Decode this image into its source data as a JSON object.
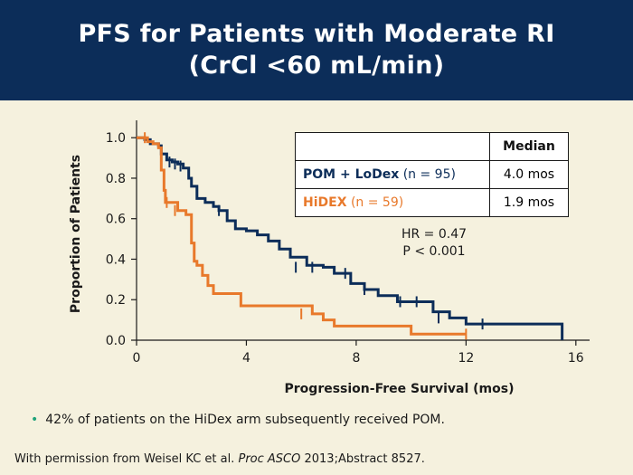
{
  "title": {
    "line1": "PFS for Patients with Moderate RI",
    "line2": "(CrCl <60 mL/min)"
  },
  "chart_data": {
    "type": "line",
    "xlabel": "Progression-Free Survival (mos)",
    "ylabel": "Proportion of Patients",
    "xlim": [
      0,
      16.5
    ],
    "ylim": [
      0,
      1.05
    ],
    "xticks": [
      "0",
      "4",
      "8",
      "12",
      "16"
    ],
    "yticks": [
      "0.0",
      "0.2",
      "0.4",
      "0.6",
      "0.8",
      "1.0"
    ],
    "grid": false,
    "series": [
      {
        "name": "POM + LoDex (n = 95)",
        "color": "#0c2d59",
        "x": [
          0,
          0.3,
          0.5,
          0.8,
          0.9,
          1.1,
          1.3,
          1.5,
          1.7,
          1.9,
          2.0,
          2.2,
          2.5,
          2.8,
          3.0,
          3.3,
          3.6,
          4.0,
          4.4,
          4.8,
          5.2,
          5.6,
          6.2,
          6.8,
          7.2,
          7.8,
          8.3,
          8.8,
          9.5,
          10.2,
          10.8,
          11.4,
          12.0,
          15.5,
          15.5
        ],
        "y": [
          1.0,
          0.99,
          0.97,
          0.96,
          0.92,
          0.89,
          0.88,
          0.87,
          0.85,
          0.8,
          0.76,
          0.7,
          0.68,
          0.66,
          0.64,
          0.59,
          0.55,
          0.54,
          0.52,
          0.49,
          0.45,
          0.41,
          0.37,
          0.36,
          0.33,
          0.28,
          0.25,
          0.22,
          0.19,
          0.19,
          0.14,
          0.11,
          0.08,
          0.08,
          0.0
        ],
        "censor_x": [
          1.2,
          1.4,
          1.6,
          3.0,
          5.8,
          6.4,
          7.6,
          8.3,
          9.6,
          10.2,
          11.0,
          12.6
        ],
        "censor_y": [
          0.88,
          0.87,
          0.86,
          0.64,
          0.36,
          0.36,
          0.33,
          0.25,
          0.19,
          0.19,
          0.11,
          0.08
        ]
      },
      {
        "name": "HiDEX (n = 59)",
        "color": "#e8792b",
        "x": [
          0,
          0.2,
          0.4,
          0.6,
          0.8,
          0.9,
          1.0,
          1.05,
          1.5,
          1.8,
          2.0,
          2.1,
          2.2,
          2.4,
          2.6,
          2.8,
          3.6,
          3.8,
          6.2,
          6.4,
          6.8,
          7.2,
          10.0,
          12.0
        ],
        "y": [
          1.0,
          1.0,
          0.98,
          0.97,
          0.95,
          0.84,
          0.74,
          0.68,
          0.64,
          0.62,
          0.48,
          0.39,
          0.37,
          0.32,
          0.27,
          0.23,
          0.23,
          0.17,
          0.17,
          0.13,
          0.1,
          0.07,
          0.03,
          0.03
        ],
        "censor_x": [
          0.3,
          1.1,
          1.4,
          6.0,
          12.0
        ],
        "censor_y": [
          1.0,
          0.68,
          0.64,
          0.13,
          0.03
        ]
      }
    ],
    "annotation": {
      "hr": "HR = 0.47",
      "p": "P < 0.001"
    }
  },
  "legend_table": {
    "header_median": "Median",
    "rows": [
      {
        "name": "POM + LoDex",
        "n": "(n = 95)",
        "median": "4.0 mos"
      },
      {
        "name": "HiDEX",
        "n": "(n = 59)",
        "median": "1.9 mos"
      }
    ]
  },
  "note": "42% of patients on the HiDex arm subsequently received POM.",
  "citation": {
    "prefix": "With permission from Weisel KC et al. ",
    "journal": "Proc ASCO",
    "suffix": " 2013;Abstract 8527."
  }
}
